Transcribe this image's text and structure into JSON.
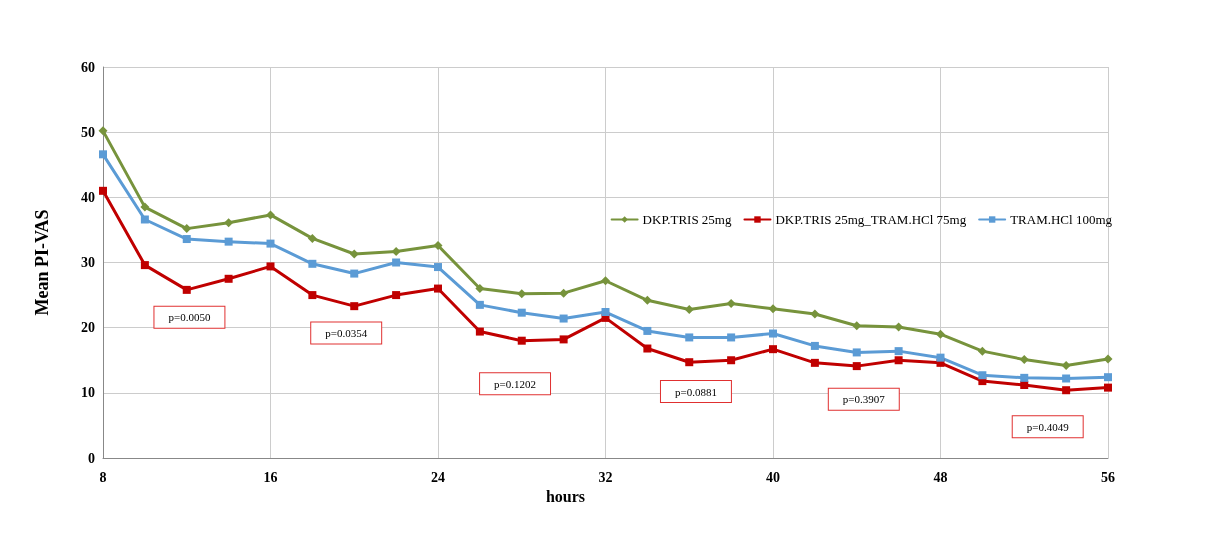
{
  "chart_data": {
    "type": "line",
    "xlabel": "hours",
    "ylabel": "Mean PI-VAS",
    "x": [
      8,
      10,
      12,
      14,
      16,
      18,
      20,
      22,
      24,
      26,
      28,
      30,
      32,
      34,
      36,
      38,
      40,
      42,
      44,
      46,
      48,
      50,
      52,
      54,
      56
    ],
    "series": [
      {
        "name": "DKP.TRIS 25mg",
        "color": "#77933c",
        "marker": "diamond",
        "values": [
          50.2,
          38.5,
          35.2,
          36.1,
          37.3,
          33.7,
          31.3,
          31.7,
          32.6,
          26.0,
          25.2,
          25.3,
          27.2,
          24.2,
          22.8,
          23.7,
          22.9,
          22.1,
          20.3,
          20.1,
          19.0,
          16.4,
          15.1,
          14.2,
          15.2
        ]
      },
      {
        "name": "DKP.TRIS 25mg_TRAM.HCl 75mg",
        "color": "#c00000",
        "marker": "square",
        "values": [
          41.0,
          29.6,
          25.8,
          27.5,
          29.4,
          25.0,
          23.3,
          25.0,
          26.0,
          19.4,
          18.0,
          18.2,
          21.5,
          16.8,
          14.7,
          15.0,
          16.7,
          14.6,
          14.1,
          15.0,
          14.6,
          11.8,
          11.2,
          10.4,
          10.8
        ]
      },
      {
        "name": "TRAM.HCl 100mg",
        "color": "#5b9bd5",
        "marker": "square",
        "values": [
          46.6,
          36.6,
          33.6,
          33.2,
          32.9,
          29.8,
          28.3,
          30.0,
          29.3,
          23.5,
          22.3,
          21.4,
          22.4,
          19.5,
          18.5,
          18.5,
          19.1,
          17.2,
          16.2,
          16.4,
          15.4,
          12.7,
          12.3,
          12.2,
          12.4
        ]
      }
    ],
    "xlim": [
      8,
      56
    ],
    "xticks": [
      8,
      16,
      24,
      32,
      40,
      48,
      56
    ],
    "ylim": [
      0,
      60
    ],
    "yticks": [
      0,
      10,
      20,
      30,
      40,
      50,
      60
    ],
    "grid": true,
    "legend": "right",
    "line_style": "solid",
    "annotations": [
      "p=0.0050",
      "p=0.0354",
      "p=0.1202",
      "p=0.0881",
      "p=0.3907",
      "p=0.4049"
    ]
  }
}
